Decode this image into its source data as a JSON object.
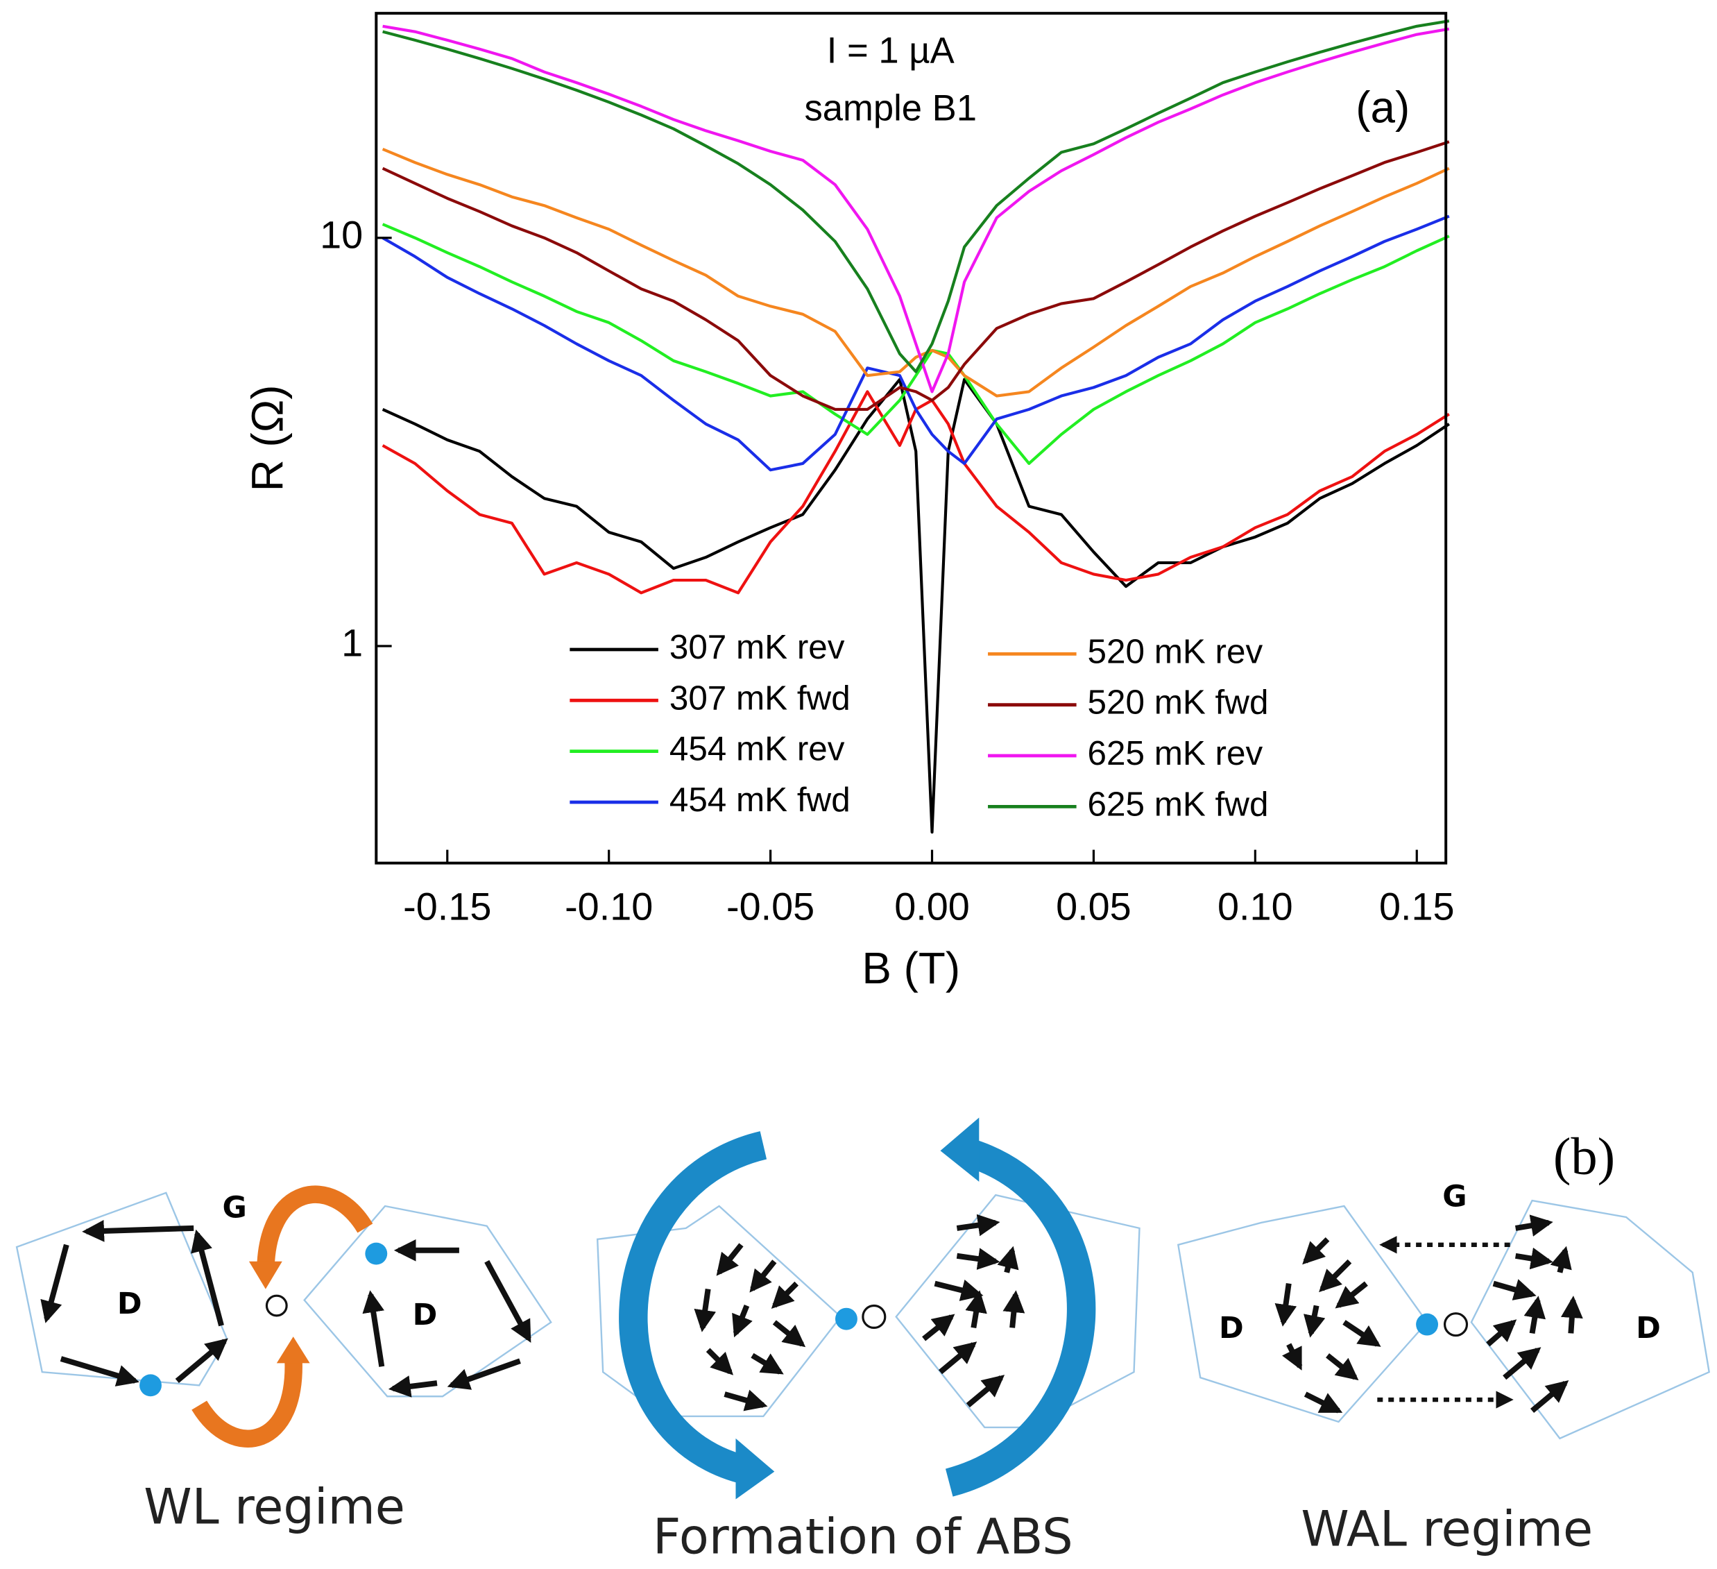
{
  "chart_data": {
    "type": "line",
    "annotations": [
      "I = 1 µA",
      "sample B1",
      "(a)"
    ],
    "xlabel": "B (T)",
    "ylabel": "R (Ω)",
    "x": [
      -0.17,
      -0.16,
      -0.15,
      -0.14,
      -0.13,
      -0.12,
      -0.11,
      -0.1,
      -0.09,
      -0.08,
      -0.07,
      -0.06,
      -0.05,
      -0.04,
      -0.03,
      -0.02,
      -0.01,
      -0.005,
      0,
      0.005,
      0.01,
      0.02,
      0.03,
      0.04,
      0.05,
      0.06,
      0.07,
      0.08,
      0.09,
      0.1,
      0.11,
      0.12,
      0.13,
      0.14,
      0.15,
      0.16
    ],
    "series": [
      {
        "name": "307 mK rev",
        "color": "#000000",
        "values": [
          3.8,
          3.5,
          3.2,
          3.0,
          2.6,
          2.3,
          2.2,
          1.9,
          1.8,
          1.55,
          1.65,
          1.8,
          1.95,
          2.1,
          2.7,
          3.6,
          4.5,
          3.0,
          0.35,
          3.0,
          4.5,
          3.5,
          2.2,
          2.1,
          1.7,
          1.4,
          1.6,
          1.6,
          1.75,
          1.85,
          2.0,
          2.3,
          2.5,
          2.8,
          3.1,
          3.5
        ]
      },
      {
        "name": "307 mK fwd",
        "color": "#ee1111",
        "values": [
          3.1,
          2.8,
          2.4,
          2.1,
          2.0,
          1.5,
          1.6,
          1.5,
          1.35,
          1.45,
          1.45,
          1.35,
          1.8,
          2.2,
          3.0,
          4.2,
          3.1,
          3.8,
          4.0,
          3.5,
          2.8,
          2.2,
          1.9,
          1.6,
          1.5,
          1.45,
          1.5,
          1.65,
          1.75,
          1.95,
          2.1,
          2.4,
          2.6,
          3.0,
          3.3,
          3.7
        ]
      },
      {
        "name": "454 mK rev",
        "color": "#22ee22",
        "values": [
          10.8,
          10.0,
          9.2,
          8.5,
          7.8,
          7.2,
          6.6,
          6.2,
          5.6,
          5.0,
          4.7,
          4.4,
          4.1,
          4.2,
          3.7,
          3.3,
          4.0,
          4.6,
          5.3,
          5.2,
          4.6,
          3.5,
          2.8,
          3.3,
          3.8,
          4.2,
          4.6,
          5.0,
          5.5,
          6.2,
          6.7,
          7.3,
          7.9,
          8.5,
          9.3,
          10.1
        ]
      },
      {
        "name": "454 mK fwd",
        "color": "#1a2ee8",
        "values": [
          10.0,
          9.0,
          8.0,
          7.3,
          6.7,
          6.1,
          5.5,
          5.0,
          4.6,
          4.0,
          3.5,
          3.2,
          2.7,
          2.8,
          3.3,
          4.8,
          4.6,
          3.8,
          3.3,
          3.0,
          2.8,
          3.6,
          3.8,
          4.1,
          4.3,
          4.6,
          5.1,
          5.5,
          6.3,
          7.0,
          7.6,
          8.3,
          9.0,
          9.8,
          10.5,
          11.3
        ]
      },
      {
        "name": "520 mK rev",
        "color": "#f5861f",
        "values": [
          16.5,
          15.3,
          14.3,
          13.5,
          12.6,
          12.0,
          11.2,
          10.5,
          9.6,
          8.8,
          8.1,
          7.2,
          6.8,
          6.5,
          5.9,
          4.6,
          4.7,
          5.1,
          5.3,
          5.1,
          4.6,
          4.1,
          4.2,
          4.8,
          5.4,
          6.1,
          6.8,
          7.6,
          8.2,
          9.0,
          9.8,
          10.7,
          11.6,
          12.6,
          13.6,
          14.8
        ]
      },
      {
        "name": "520 mK fwd",
        "color": "#8b0a0a",
        "values": [
          14.8,
          13.6,
          12.5,
          11.6,
          10.7,
          10.0,
          9.2,
          8.3,
          7.5,
          7.0,
          6.3,
          5.6,
          4.6,
          4.1,
          3.8,
          3.8,
          4.3,
          4.2,
          4.0,
          4.3,
          4.9,
          6.0,
          6.5,
          6.9,
          7.1,
          7.8,
          8.6,
          9.5,
          10.4,
          11.3,
          12.2,
          13.2,
          14.2,
          15.3,
          16.2,
          17.2
        ]
      },
      {
        "name": "625 mK rev",
        "color": "#f016f0",
        "values": [
          33,
          32,
          30.5,
          29,
          27.5,
          25.5,
          24,
          22.5,
          21,
          19.5,
          18.3,
          17.3,
          16.3,
          15.5,
          13.5,
          10.5,
          7.2,
          5.5,
          4.2,
          5.2,
          7.8,
          11.2,
          13.0,
          14.6,
          16.0,
          17.6,
          19.2,
          20.7,
          22.4,
          24,
          25.5,
          27,
          28.5,
          30,
          31.5,
          32.5
        ]
      },
      {
        "name": "625 mK fwd",
        "color": "#17801e",
        "values": [
          32,
          30.5,
          29,
          27.5,
          26,
          24.5,
          23,
          21.5,
          20,
          18.5,
          16.8,
          15.2,
          13.5,
          11.7,
          9.8,
          7.5,
          5.2,
          4.7,
          5.5,
          7.0,
          9.5,
          12.0,
          14.0,
          16.2,
          17.0,
          18.5,
          20.2,
          22,
          24,
          25.5,
          27,
          28.5,
          30,
          31.5,
          33,
          34
        ]
      }
    ],
    "xlim": [
      -0.172,
      0.159
    ],
    "xticks": [
      -0.15,
      {
        "value": -0.1,
        "label": "-0.10"
      },
      -0.05,
      {
        "value": 0,
        "label": "0.00"
      },
      0.05,
      {
        "value": 0.1,
        "label": "0.10"
      },
      0.15
    ],
    "ylim": [
      0.294,
      35.5
    ],
    "yscale": "log",
    "yticks": [
      1,
      10
    ],
    "grid": false,
    "legend": "lower center",
    "legend_columns": 2
  },
  "diagram": {
    "label": "(b)",
    "panels": [
      {
        "caption": "WL regime",
        "labels": [
          "G",
          "D",
          "D"
        ]
      },
      {
        "caption": "Formation of ABS"
      },
      {
        "caption": "WAL regime",
        "labels": [
          "G",
          "D",
          "D"
        ]
      }
    ]
  }
}
